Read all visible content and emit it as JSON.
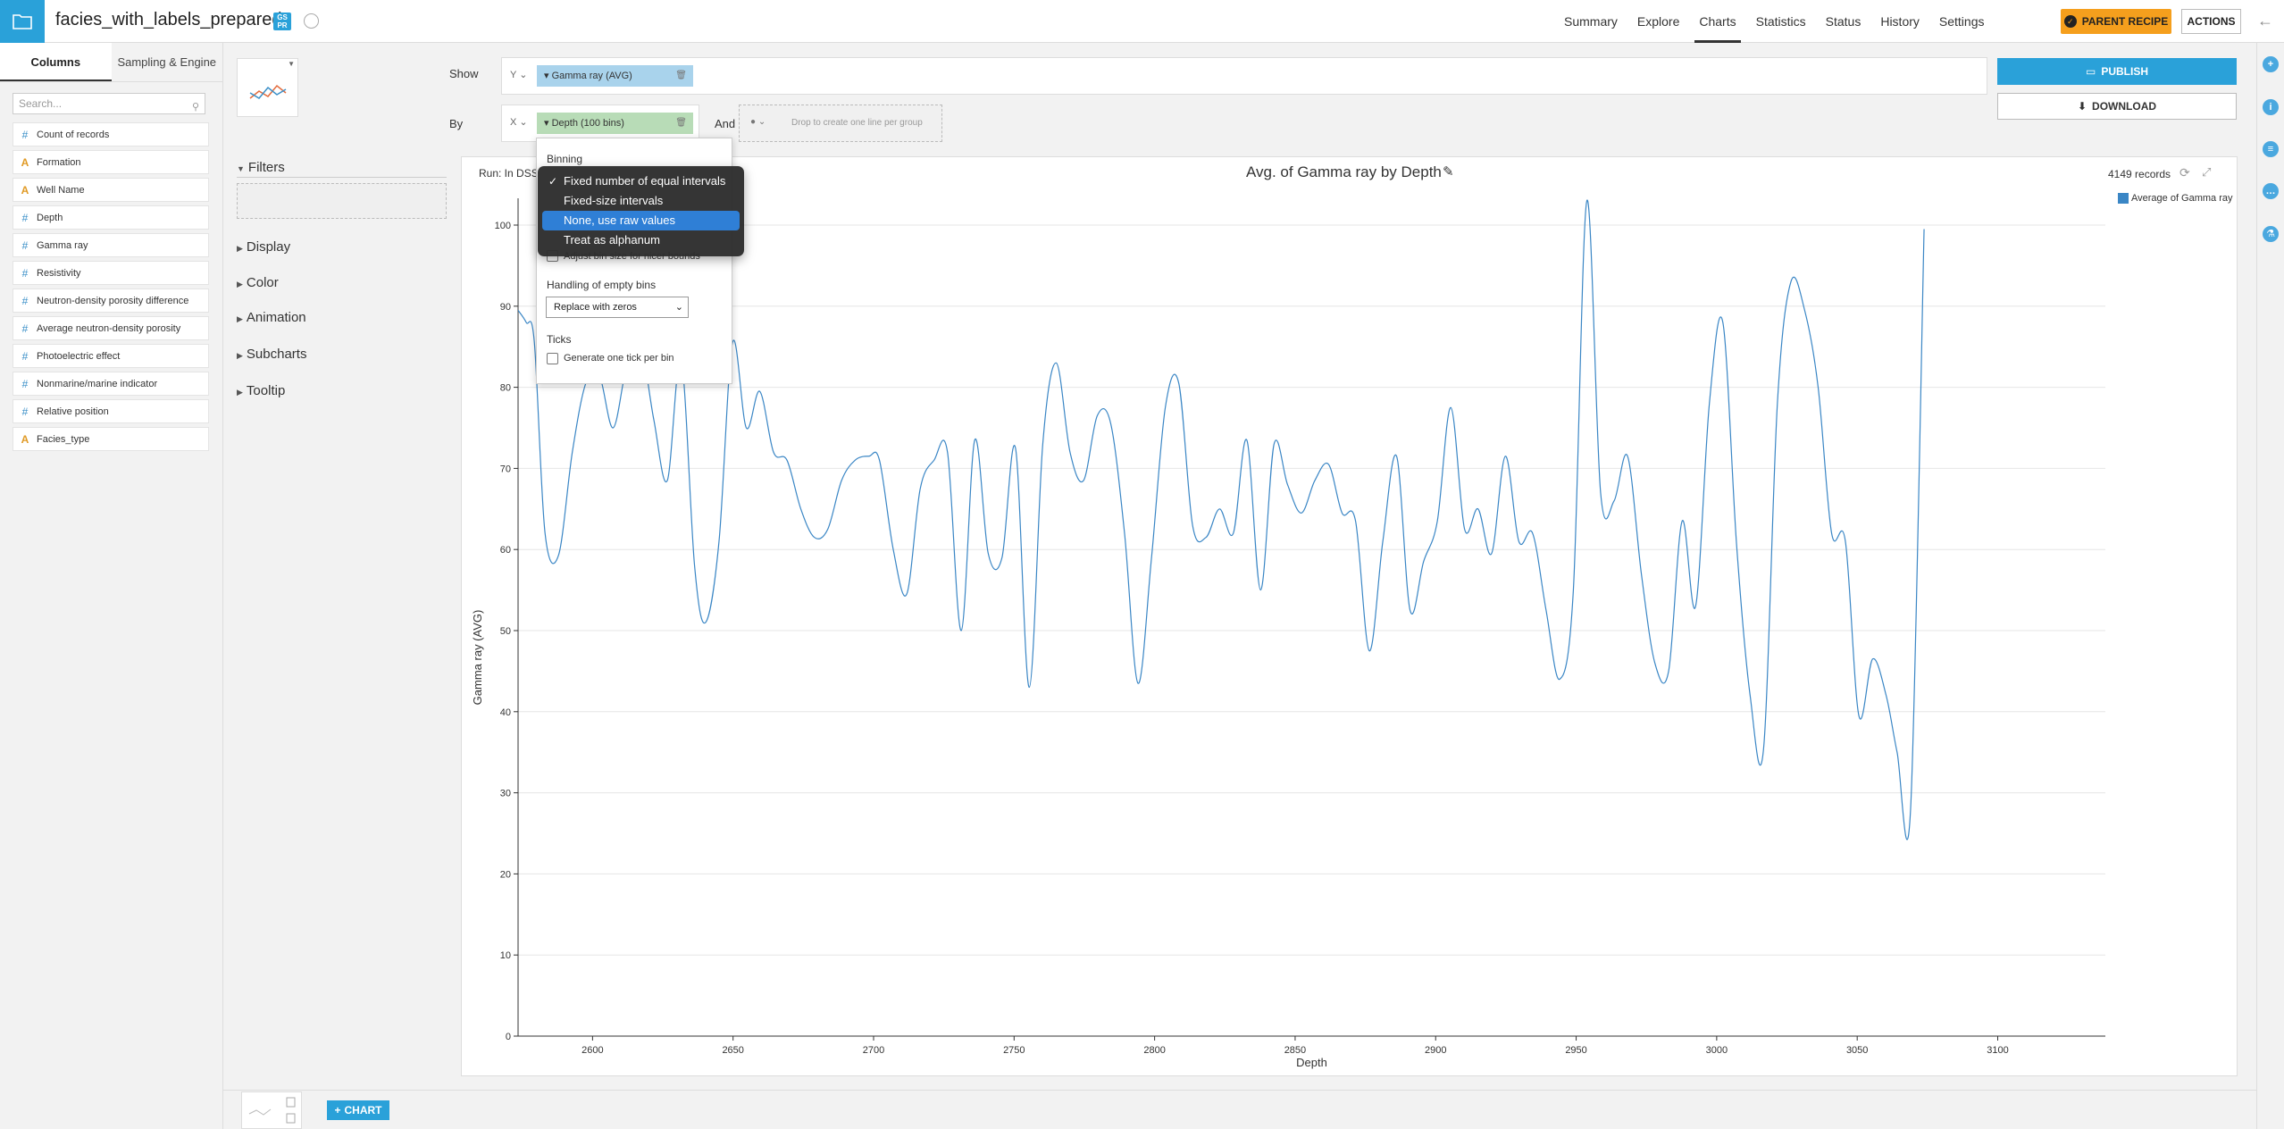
{
  "header": {
    "dataset_title": "facies_with_labels_prepared",
    "badge_text": "GS PR",
    "nav": [
      "Summary",
      "Explore",
      "Charts",
      "Statistics",
      "Status",
      "History",
      "Settings"
    ],
    "active_nav": "Charts",
    "parent_recipe_label": "PARENT RECIPE",
    "actions_label": "ACTIONS"
  },
  "left_panel": {
    "tabs": [
      "Columns",
      "Sampling & Engine"
    ],
    "search_placeholder": "Search...",
    "columns": [
      {
        "type": "#",
        "name": "Count of records",
        "kind": "num"
      },
      {
        "type": "A",
        "name": "Formation",
        "kind": "txt"
      },
      {
        "type": "A",
        "name": "Well Name",
        "kind": "txt"
      },
      {
        "type": "#",
        "name": "Depth",
        "kind": "num"
      },
      {
        "type": "#",
        "name": "Gamma ray",
        "kind": "num"
      },
      {
        "type": "#",
        "name": "Resistivity",
        "kind": "num"
      },
      {
        "type": "#",
        "name": "Neutron-density porosity difference",
        "kind": "num"
      },
      {
        "type": "#",
        "name": "Average neutron-density porosity",
        "kind": "num"
      },
      {
        "type": "#",
        "name": "Photoelectric effect",
        "kind": "num"
      },
      {
        "type": "#",
        "name": "Nonmarine/marine indicator",
        "kind": "num"
      },
      {
        "type": "#",
        "name": "Relative position",
        "kind": "num"
      },
      {
        "type": "A",
        "name": "Facies_type",
        "kind": "txt"
      }
    ]
  },
  "settings": {
    "sections": [
      "Filters",
      "Display",
      "Color",
      "Animation",
      "Subcharts",
      "Tooltip"
    ]
  },
  "editor": {
    "show_label": "Show",
    "by_label": "By",
    "and_label": "And",
    "y_selector": "Y",
    "x_selector": "X",
    "y_measure": "Gamma ray (AVG)",
    "x_dimension": "Depth (100 bins)",
    "group_drop_text": "Drop to create one line per group",
    "publish_label": "PUBLISH",
    "download_label": "DOWNLOAD"
  },
  "binning_popover": {
    "binning_title": "Binning",
    "options": [
      "Fixed number of equal intervals",
      "Fixed-size intervals",
      "None, use raw values",
      "Treat as alphanum"
    ],
    "checked_option": "Fixed number of equal intervals",
    "highlighted_option": "None, use raw values",
    "adjust_checkbox_label": "Adjust bin size for nicer bounds",
    "empty_bins_title": "Handling of empty bins",
    "empty_bins_value": "Replace with zeros",
    "ticks_title": "Ticks",
    "ticks_checkbox_label": "Generate one tick per bin"
  },
  "chart_meta": {
    "run_info": "Run: In DSS",
    "records": "4149 records",
    "legend_label": "Average of Gamma ray"
  },
  "chart_data": {
    "type": "line",
    "title": "Avg. of Gamma ray by Depth",
    "xlabel": "Depth",
    "ylabel": "Gamma ray (AVG)",
    "xlim": [
      2573.5,
      3138.3
    ],
    "ylim": [
      0,
      100
    ],
    "x_ticks": [
      2600,
      2650,
      2700,
      2750,
      2800,
      2850,
      2900,
      2950,
      3000,
      3050,
      3100
    ],
    "y_ticks": [
      0,
      10,
      20,
      30,
      40,
      50,
      60,
      70,
      80,
      90,
      100
    ],
    "grid": "horizontal",
    "legend_position": "top-right",
    "series": [
      {
        "name": "Average of Gamma ray",
        "color": "#3a86c5",
        "points": [
          [
            2573.5,
            89.5
          ],
          [
            2576.4,
            88.0
          ],
          [
            2579.3,
            85.5
          ],
          [
            2583.1,
            62.0
          ],
          [
            2587.9,
            59.3
          ],
          [
            2592.8,
            72.0
          ],
          [
            2597.6,
            80.5
          ],
          [
            2602.4,
            81.5
          ],
          [
            2607.3,
            75.0
          ],
          [
            2612.1,
            82.5
          ],
          [
            2616.9,
            85.5
          ],
          [
            2621.8,
            76.0
          ],
          [
            2626.6,
            68.5
          ],
          [
            2631.5,
            83.5
          ],
          [
            2636.3,
            58.0
          ],
          [
            2640.2,
            51.0
          ],
          [
            2645.0,
            61.0
          ],
          [
            2649.8,
            85.5
          ],
          [
            2654.7,
            75.0
          ],
          [
            2659.5,
            79.5
          ],
          [
            2664.4,
            72.0
          ],
          [
            2669.2,
            71.0
          ],
          [
            2674.1,
            65.0
          ],
          [
            2678.9,
            61.5
          ],
          [
            2683.7,
            62.5
          ],
          [
            2688.6,
            68.5
          ],
          [
            2693.4,
            71.0
          ],
          [
            2698.3,
            71.5
          ],
          [
            2702.1,
            71.0
          ],
          [
            2707.0,
            60.0
          ],
          [
            2711.8,
            54.5
          ],
          [
            2716.6,
            67.5
          ],
          [
            2721.5,
            71.0
          ],
          [
            2726.3,
            72.0
          ],
          [
            2731.2,
            50.0
          ],
          [
            2736.0,
            73.5
          ],
          [
            2740.8,
            59.5
          ],
          [
            2745.7,
            59.0
          ],
          [
            2750.5,
            72.5
          ],
          [
            2755.4,
            43.0
          ],
          [
            2760.2,
            73.0
          ],
          [
            2765.0,
            83.0
          ],
          [
            2769.9,
            72.0
          ],
          [
            2774.7,
            68.5
          ],
          [
            2779.6,
            76.5
          ],
          [
            2784.4,
            75.5
          ],
          [
            2789.3,
            62.0
          ],
          [
            2794.1,
            43.5
          ],
          [
            2798.9,
            59.0
          ],
          [
            2803.8,
            77.5
          ],
          [
            2808.6,
            80.5
          ],
          [
            2813.5,
            63.0
          ],
          [
            2818.3,
            61.5
          ],
          [
            2823.1,
            65.0
          ],
          [
            2828.0,
            62.0
          ],
          [
            2832.8,
            73.5
          ],
          [
            2837.7,
            55.0
          ],
          [
            2842.5,
            73.0
          ],
          [
            2847.3,
            68.0
          ],
          [
            2852.2,
            64.5
          ],
          [
            2857.0,
            68.5
          ],
          [
            2861.9,
            70.5
          ],
          [
            2866.7,
            64.5
          ],
          [
            2871.5,
            63.5
          ],
          [
            2876.4,
            47.5
          ],
          [
            2881.2,
            61.0
          ],
          [
            2886.1,
            71.5
          ],
          [
            2890.9,
            52.5
          ],
          [
            2895.7,
            58.5
          ],
          [
            2900.6,
            63.5
          ],
          [
            2905.4,
            77.5
          ],
          [
            2910.3,
            62.5
          ],
          [
            2915.1,
            65.0
          ],
          [
            2919.9,
            59.5
          ],
          [
            2924.8,
            71.5
          ],
          [
            2929.6,
            61.0
          ],
          [
            2934.5,
            62.0
          ],
          [
            2939.3,
            52.5
          ],
          [
            2944.1,
            44.0
          ],
          [
            2949.0,
            55.0
          ],
          [
            2953.8,
            103.0
          ],
          [
            2958.7,
            67.0
          ],
          [
            2963.5,
            66.0
          ],
          [
            2968.3,
            71.5
          ],
          [
            2973.2,
            57.0
          ],
          [
            2978.0,
            46.0
          ],
          [
            2982.9,
            45.0
          ],
          [
            2987.7,
            63.5
          ],
          [
            2992.5,
            53.0
          ],
          [
            2997.4,
            78.0
          ],
          [
            3002.2,
            88.0
          ],
          [
            3007.1,
            60.5
          ],
          [
            3011.9,
            42.0
          ],
          [
            3016.7,
            35.5
          ],
          [
            3021.6,
            78.0
          ],
          [
            3026.4,
            93.0
          ],
          [
            3031.3,
            89.5
          ],
          [
            3036.1,
            80.0
          ],
          [
            3040.9,
            62.0
          ],
          [
            3045.8,
            61.0
          ],
          [
            3050.6,
            39.5
          ],
          [
            3055.5,
            46.5
          ],
          [
            3060.3,
            42.0
          ],
          [
            3064.2,
            35.0
          ],
          [
            3069.0,
            28.0
          ],
          [
            3073.8,
            99.5
          ]
        ]
      }
    ]
  }
}
